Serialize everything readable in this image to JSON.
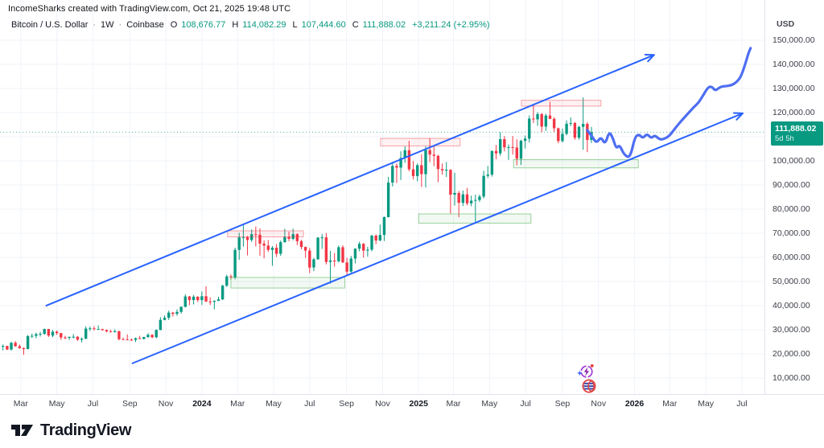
{
  "header": {
    "attribution": "IncomeSharks created with TradingView.com, Oct 21, 2025 19:48 UTC"
  },
  "legend": {
    "symbol": "Bitcoin / U.S. Dollar",
    "sep": "·",
    "interval": "1W",
    "exchange": "Coinbase",
    "o_label": "O",
    "o": "108,676.77",
    "h_label": "H",
    "h": "114,082.29",
    "l_label": "L",
    "l": "107,444.60",
    "c_label": "C",
    "c": "111,888.02",
    "change": "+3,211.24 (+2.95%)"
  },
  "price_axis": {
    "currency_label": "USD",
    "ticks": [
      {
        "label": "150,000.00",
        "value": 150000
      },
      {
        "label": "140,000.00",
        "value": 140000
      },
      {
        "label": "130,000.00",
        "value": 130000
      },
      {
        "label": "120,000.00",
        "value": 120000
      },
      {
        "label": "110,000.00",
        "value": 110000,
        "hidden": true
      },
      {
        "label": "100,000.00",
        "value": 100000
      },
      {
        "label": "90,000.00",
        "value": 90000
      },
      {
        "label": "80,000.00",
        "value": 80000
      },
      {
        "label": "70,000.00",
        "value": 70000
      },
      {
        "label": "60,000.00",
        "value": 60000
      },
      {
        "label": "50,000.00",
        "value": 50000
      },
      {
        "label": "40,000.00",
        "value": 40000
      },
      {
        "label": "30,000.00",
        "value": 30000
      },
      {
        "label": "20,000.00",
        "value": 20000
      },
      {
        "label": "10,000.00",
        "value": 10000
      }
    ],
    "last_price": {
      "price": "111,888.02",
      "countdown": "5d 5h"
    }
  },
  "time_axis": {
    "ticks": [
      {
        "label": "Mar",
        "week": 4.3,
        "year": false
      },
      {
        "label": "May",
        "week": 13.0,
        "year": false
      },
      {
        "label": "Jul",
        "week": 21.7,
        "year": false
      },
      {
        "label": "Sep",
        "week": 30.6,
        "year": false
      },
      {
        "label": "Nov",
        "week": 39.3,
        "year": false
      },
      {
        "label": "2024",
        "week": 48.0,
        "year": true
      },
      {
        "label": "Mar",
        "week": 56.6,
        "year": false
      },
      {
        "label": "May",
        "week": 65.3,
        "year": false
      },
      {
        "label": "Jul",
        "week": 74.0,
        "year": false
      },
      {
        "label": "Sep",
        "week": 82.9,
        "year": false
      },
      {
        "label": "Nov",
        "week": 91.6,
        "year": false
      },
      {
        "label": "2025",
        "week": 100.3,
        "year": true
      },
      {
        "label": "Mar",
        "week": 108.7,
        "year": false
      },
      {
        "label": "May",
        "week": 117.4,
        "year": false
      },
      {
        "label": "Jul",
        "week": 126.1,
        "year": false
      },
      {
        "label": "Sep",
        "week": 135.0,
        "year": false
      },
      {
        "label": "Nov",
        "week": 143.7,
        "year": false
      },
      {
        "label": "2026",
        "week": 152.4,
        "year": true
      },
      {
        "label": "Mar",
        "week": 160.9,
        "year": false
      },
      {
        "label": "May",
        "week": 169.6,
        "year": false
      },
      {
        "label": "Jul",
        "week": 178.3,
        "year": false
      }
    ]
  },
  "footer": {
    "brand": "TradingView"
  },
  "stickers": [
    {
      "name": "lightning-cycle-emoji"
    },
    {
      "name": "striped-globe-emoji"
    }
  ],
  "colors": {
    "up": "#089981",
    "down": "#f23645",
    "grid": "#f0f3fa",
    "channel": "#2962ff",
    "projection": "#4e6ef2",
    "zone_red_border": "rgba(242,54,69,0.45)",
    "zone_red_fill": "rgba(242,54,69,0.07)",
    "zone_green_border": "rgba(76,175,80,0.55)",
    "zone_green_fill": "rgba(76,175,80,0.07)",
    "last_price_tag_bg": "#089981"
  },
  "chart_data": {
    "type": "candlestick",
    "title": "Bitcoin / U.S. Dollar",
    "interval": "1W",
    "exchange": "Coinbase",
    "units": "USD thousands",
    "candles_format": [
      "open",
      "high",
      "low",
      "close"
    ],
    "x_range_weeks_label": "late Jan 2023 → Oct 20 2025, one candle per week",
    "ylim": [
      10000,
      150000
    ],
    "last_price": 111888.02,
    "last_change": "+3,211.24 (+2.95%)",
    "candles": [
      [
        23.0,
        23.9,
        21.4,
        23.3
      ],
      [
        23.3,
        23.4,
        21.6,
        21.8
      ],
      [
        21.8,
        25.0,
        21.4,
        24.6
      ],
      [
        24.6,
        25.3,
        22.9,
        23.2
      ],
      [
        23.2,
        23.9,
        22.1,
        22.4
      ],
      [
        22.4,
        22.7,
        19.6,
        22.0
      ],
      [
        22.0,
        27.8,
        21.9,
        27.4
      ],
      [
        27.4,
        28.4,
        26.6,
        27.5
      ],
      [
        27.5,
        28.8,
        26.5,
        28.2
      ],
      [
        28.2,
        29.1,
        27.2,
        28.3
      ],
      [
        28.3,
        30.5,
        27.9,
        30.3
      ],
      [
        30.3,
        30.4,
        27.0,
        27.6
      ],
      [
        27.6,
        29.9,
        26.9,
        29.2
      ],
      [
        29.2,
        29.7,
        27.9,
        28.6
      ],
      [
        28.6,
        28.7,
        25.8,
        26.8
      ],
      [
        26.8,
        27.5,
        26.1,
        26.7
      ],
      [
        26.7,
        27.1,
        25.8,
        27.1
      ],
      [
        27.1,
        28.2,
        26.5,
        27.1
      ],
      [
        27.1,
        27.4,
        25.4,
        25.9
      ],
      [
        25.9,
        26.8,
        24.8,
        26.3
      ],
      [
        26.3,
        31.4,
        26.1,
        30.5
      ],
      [
        30.5,
        31.3,
        29.5,
        30.6
      ],
      [
        30.6,
        31.5,
        29.7,
        30.3
      ],
      [
        30.3,
        31.8,
        30.0,
        30.3
      ],
      [
        30.3,
        30.4,
        29.6,
        29.9
      ],
      [
        29.9,
        30.1,
        28.9,
        29.3
      ],
      [
        29.3,
        30.0,
        28.9,
        29.0
      ],
      [
        29.0,
        30.2,
        28.9,
        29.4
      ],
      [
        29.4,
        29.6,
        25.6,
        26.1
      ],
      [
        26.1,
        26.8,
        25.8,
        26.0
      ],
      [
        26.0,
        28.1,
        25.7,
        25.9
      ],
      [
        25.9,
        26.4,
        25.3,
        25.8
      ],
      [
        25.8,
        26.8,
        24.9,
        26.5
      ],
      [
        26.5,
        27.5,
        26.1,
        26.2
      ],
      [
        26.2,
        27.1,
        26.0,
        27.0
      ],
      [
        27.0,
        28.6,
        26.6,
        27.9
      ],
      [
        27.9,
        28.1,
        26.5,
        26.9
      ],
      [
        26.9,
        30.2,
        26.5,
        29.9
      ],
      [
        29.9,
        35.2,
        29.8,
        34.1
      ],
      [
        34.1,
        35.9,
        33.9,
        35.0
      ],
      [
        35.0,
        37.9,
        34.1,
        37.1
      ],
      [
        37.1,
        37.4,
        35.5,
        36.6
      ],
      [
        36.6,
        38.4,
        35.8,
        37.4
      ],
      [
        37.4,
        39.7,
        36.7,
        39.5
      ],
      [
        39.5,
        44.7,
        39.3,
        43.8
      ],
      [
        43.8,
        44.0,
        40.2,
        42.3
      ],
      [
        42.3,
        44.4,
        40.5,
        43.7
      ],
      [
        43.7,
        43.9,
        41.5,
        42.3
      ],
      [
        42.3,
        45.9,
        40.3,
        43.9
      ],
      [
        43.9,
        48.0,
        41.5,
        41.7
      ],
      [
        41.7,
        43.4,
        40.3,
        41.6
      ],
      [
        41.6,
        42.2,
        38.5,
        42.0
      ],
      [
        42.0,
        43.7,
        41.9,
        42.6
      ],
      [
        42.6,
        48.6,
        42.3,
        48.3
      ],
      [
        48.3,
        52.8,
        47.7,
        52.1
      ],
      [
        52.1,
        52.9,
        50.8,
        51.7
      ],
      [
        51.7,
        64.0,
        50.9,
        63.1
      ],
      [
        63.1,
        70.2,
        59.0,
        68.3
      ],
      [
        68.3,
        73.8,
        64.5,
        68.4
      ],
      [
        68.4,
        68.9,
        60.8,
        67.2
      ],
      [
        67.2,
        71.6,
        66.4,
        69.6
      ],
      [
        69.6,
        72.8,
        64.5,
        69.4
      ],
      [
        69.4,
        72.0,
        60.7,
        65.7
      ],
      [
        65.7,
        67.1,
        59.6,
        64.9
      ],
      [
        64.9,
        67.2,
        62.3,
        63.1
      ],
      [
        63.1,
        64.7,
        56.5,
        64.0
      ],
      [
        64.0,
        65.5,
        60.2,
        61.5
      ],
      [
        61.5,
        67.0,
        60.6,
        66.3
      ],
      [
        66.3,
        71.9,
        66.1,
        68.5
      ],
      [
        68.5,
        70.6,
        66.7,
        67.7
      ],
      [
        67.7,
        71.9,
        67.1,
        69.6
      ],
      [
        69.6,
        70.0,
        65.1,
        66.7
      ],
      [
        66.7,
        67.3,
        63.4,
        64.3
      ],
      [
        64.3,
        64.5,
        59.8,
        62.8
      ],
      [
        62.8,
        63.9,
        53.5,
        55.8
      ],
      [
        55.8,
        59.8,
        54.3,
        59.2
      ],
      [
        59.2,
        68.4,
        59.0,
        68.2
      ],
      [
        68.2,
        69.6,
        63.5,
        68.3
      ],
      [
        68.3,
        70.1,
        57.1,
        58.1
      ],
      [
        58.1,
        62.7,
        49.1,
        58.7
      ],
      [
        58.7,
        61.8,
        56.1,
        58.4
      ],
      [
        58.4,
        64.9,
        57.9,
        64.2
      ],
      [
        64.2,
        65.0,
        57.7,
        57.9
      ],
      [
        57.9,
        59.8,
        52.5,
        54.1
      ],
      [
        54.1,
        60.6,
        53.6,
        59.5
      ],
      [
        59.5,
        63.8,
        57.5,
        63.6
      ],
      [
        63.6,
        66.5,
        62.5,
        65.6
      ],
      [
        65.6,
        66.0,
        59.9,
        62.8
      ],
      [
        62.8,
        64.4,
        60.3,
        63.2
      ],
      [
        63.2,
        69.4,
        62.5,
        69.0
      ],
      [
        69.0,
        69.5,
        65.5,
        67.0
      ],
      [
        67.0,
        73.6,
        66.7,
        69.3
      ],
      [
        69.3,
        76.9,
        66.8,
        76.7
      ],
      [
        76.7,
        93.4,
        76.5,
        91.0
      ],
      [
        91.0,
        99.6,
        89.4,
        97.9
      ],
      [
        97.9,
        98.9,
        90.8,
        97.2
      ],
      [
        97.2,
        104.0,
        92.1,
        101.2
      ],
      [
        101.2,
        106.0,
        99.2,
        104.4
      ],
      [
        104.4,
        108.3,
        95.7,
        96.5
      ],
      [
        96.5,
        99.9,
        92.3,
        93.7
      ],
      [
        93.7,
        98.9,
        91.5,
        98.2
      ],
      [
        98.2,
        102.7,
        89.2,
        94.5
      ],
      [
        94.5,
        106.0,
        89.0,
        104.5
      ],
      [
        104.5,
        109.4,
        99.5,
        102.6
      ],
      [
        102.6,
        106.5,
        97.8,
        102.1
      ],
      [
        102.1,
        102.5,
        91.2,
        96.6
      ],
      [
        96.6,
        98.9,
        94.3,
        96.1
      ],
      [
        96.1,
        99.5,
        93.3,
        96.3
      ],
      [
        96.3,
        96.5,
        78.2,
        86.0
      ],
      [
        86.0,
        95.1,
        81.5,
        86.7
      ],
      [
        86.7,
        87.5,
        76.6,
        82.6
      ],
      [
        82.6,
        87.7,
        81.3,
        86.1
      ],
      [
        86.1,
        88.8,
        81.6,
        82.4
      ],
      [
        82.4,
        85.6,
        81.2,
        83.5
      ],
      [
        83.5,
        86.0,
        74.5,
        83.8
      ],
      [
        83.8,
        86.0,
        83.0,
        85.2
      ],
      [
        85.2,
        95.9,
        84.4,
        93.8
      ],
      [
        93.8,
        97.9,
        92.9,
        94.3
      ],
      [
        94.3,
        104.3,
        93.5,
        104.1
      ],
      [
        104.1,
        106.6,
        100.7,
        103.1
      ],
      [
        103.1,
        111.9,
        102.1,
        109.0
      ],
      [
        109.0,
        110.3,
        103.9,
        105.6
      ],
      [
        105.6,
        106.8,
        100.4,
        105.7
      ],
      [
        105.7,
        110.3,
        102.6,
        105.5
      ],
      [
        105.5,
        108.9,
        98.2,
        100.9
      ],
      [
        100.9,
        108.8,
        98.3,
        108.3
      ],
      [
        108.3,
        110.5,
        105.1,
        109.2
      ],
      [
        109.2,
        118.8,
        107.6,
        117.5
      ],
      [
        117.5,
        123.2,
        115.7,
        117.2
      ],
      [
        117.2,
        120.2,
        114.5,
        119.4
      ],
      [
        119.4,
        119.8,
        111.9,
        114.2
      ],
      [
        114.2,
        119.5,
        112.4,
        118.8
      ],
      [
        118.8,
        124.5,
        117.3,
        117.4
      ],
      [
        117.4,
        118.1,
        111.9,
        113.5
      ],
      [
        113.5,
        113.8,
        107.3,
        108.2
      ],
      [
        108.2,
        113.4,
        107.6,
        111.2
      ],
      [
        111.2,
        116.8,
        110.6,
        115.4
      ],
      [
        115.4,
        118.0,
        114.4,
        115.7
      ],
      [
        115.7,
        116.1,
        108.7,
        109.6
      ],
      [
        109.6,
        114.5,
        108.8,
        114.1
      ],
      [
        114.1,
        126.3,
        104.6,
        115.3
      ],
      [
        115.3,
        116.1,
        103.6,
        108.7
      ],
      [
        108.7,
        114.1,
        107.4,
        111.9
      ]
    ],
    "zones": [
      {
        "kind": "resistance",
        "weeks": [
          54.2,
          72.5
        ],
        "prices": [
          68.5,
          71.0
        ]
      },
      {
        "kind": "support",
        "weeks": [
          55.0,
          82.5
        ],
        "prices": [
          47.3,
          51.7
        ]
      },
      {
        "kind": "resistance",
        "weeks": [
          91.1,
          110.3
        ],
        "prices": [
          106.2,
          109.3
        ]
      },
      {
        "kind": "support",
        "weeks": [
          100.3,
          127.4
        ],
        "prices": [
          74.2,
          78.0
        ]
      },
      {
        "kind": "resistance",
        "weeks": [
          125.1,
          144.3
        ],
        "prices": [
          122.7,
          125.1
        ]
      },
      {
        "kind": "support",
        "weeks": [
          123.2,
          153.3
        ],
        "prices": [
          97.1,
          100.5
        ]
      }
    ],
    "channel": {
      "upper": [
        [
          10.3,
          39.9
        ],
        [
          157.1,
          143.9
        ]
      ],
      "lower": [
        [
          31.1,
          16.0
        ],
        [
          178.5,
          119.7
        ]
      ]
    },
    "projection": {
      "description": "hand-drawn blue squiggle: pullback to lower channel then rally toward 146k",
      "points": [
        [
          141.0,
          112.7
        ],
        [
          142.2,
          110.0
        ],
        [
          143.2,
          107.3
        ],
        [
          144.3,
          110.0
        ],
        [
          145.3,
          106.7
        ],
        [
          146.3,
          112.3
        ],
        [
          147.2,
          109.3
        ],
        [
          148.0,
          105.0
        ],
        [
          148.8,
          106.7
        ],
        [
          149.8,
          102.7
        ],
        [
          151.3,
          101.0
        ],
        [
          152.5,
          110.0
        ],
        [
          153.5,
          111.0
        ],
        [
          154.4,
          109.3
        ],
        [
          155.4,
          111.3
        ],
        [
          156.4,
          109.3
        ],
        [
          157.3,
          110.7
        ],
        [
          158.5,
          108.7
        ],
        [
          159.9,
          109.3
        ],
        [
          161.0,
          110.7
        ],
        [
          162.4,
          114.0
        ],
        [
          163.9,
          117.0
        ],
        [
          165.5,
          120.0
        ],
        [
          166.7,
          122.3
        ],
        [
          167.8,
          124.0
        ],
        [
          169.0,
          127.3
        ],
        [
          170.2,
          130.7
        ],
        [
          171.1,
          130.7
        ],
        [
          171.9,
          129.0
        ],
        [
          173.1,
          130.7
        ],
        [
          174.4,
          131.0
        ],
        [
          175.8,
          131.3
        ],
        [
          177.1,
          132.7
        ],
        [
          178.1,
          135.0
        ],
        [
          179.1,
          140.0
        ],
        [
          179.9,
          144.7
        ],
        [
          180.4,
          146.7
        ]
      ]
    }
  }
}
